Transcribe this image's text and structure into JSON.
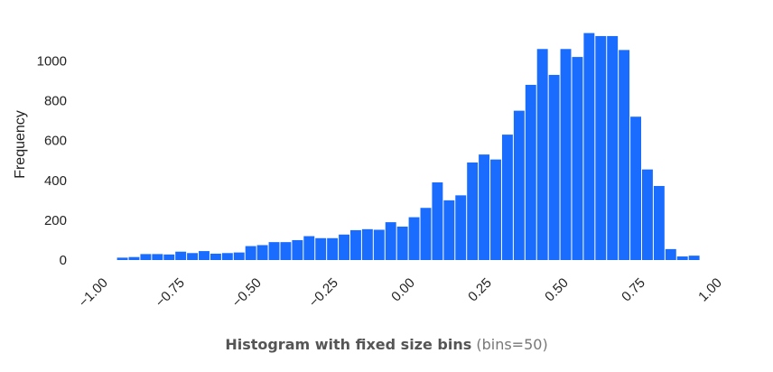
{
  "chart_data": {
    "type": "bar",
    "title": "Histogram with fixed size bins",
    "subtitle": "(bins=50)",
    "ylabel": "Frequency",
    "xlabel": "",
    "bar_color": "#1a6cff",
    "grid": false,
    "legend": "none",
    "xlim": [
      -1.0,
      1.0
    ],
    "ylim": [
      0,
      1150
    ],
    "x_ticks": [
      -1.0,
      -0.75,
      -0.5,
      -0.25,
      0.0,
      0.25,
      0.5,
      0.75,
      1.0
    ],
    "x_tick_labels": [
      "−1.00",
      "−0.75",
      "−0.50",
      "−0.25",
      "0.00",
      "0.25",
      "0.50",
      "0.75",
      "1.00"
    ],
    "y_ticks": [
      0,
      200,
      400,
      600,
      800,
      1000
    ],
    "y_tick_labels": [
      "0",
      "200",
      "400",
      "600",
      "800",
      "1000"
    ],
    "bin_edges_range": [
      -0.96,
      0.94
    ],
    "bin_width": 0.038,
    "values": [
      12,
      15,
      30,
      30,
      28,
      42,
      35,
      45,
      32,
      35,
      38,
      70,
      75,
      90,
      90,
      100,
      120,
      110,
      110,
      128,
      150,
      155,
      152,
      190,
      168,
      215,
      262,
      390,
      300,
      325,
      490,
      530,
      505,
      630,
      750,
      880,
      1060,
      930,
      1060,
      1020,
      1140,
      1125,
      1125,
      1055,
      720,
      455,
      372,
      55,
      18,
      22
    ]
  }
}
